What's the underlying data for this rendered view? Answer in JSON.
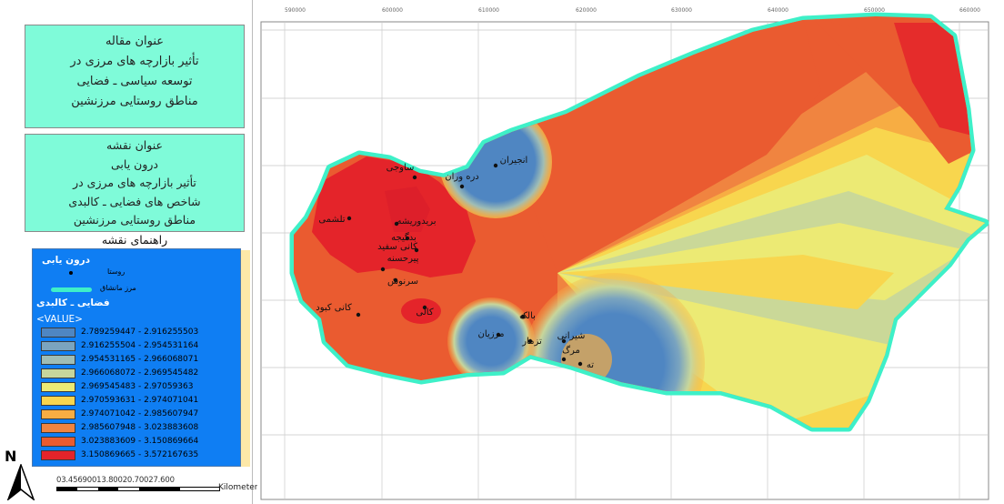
{
  "article_box": {
    "heading": "عنوان مقاله",
    "lines": [
      "تأثیر بازارچه های مرزی در",
      "توسعه سیاسی ـ فضایی",
      "مناطق روستایی مرزنشین"
    ]
  },
  "map_title_box": {
    "heading": "عنوان نقشه",
    "lines": [
      "درون یابی",
      "تأثیر بازارچه های مرزی در",
      "شاخص های فضایی ـ کالبدی",
      "مناطق روستایی مرزنشین"
    ]
  },
  "legend": {
    "caption": "راهنمای نقشه",
    "section_title": "درون یابی",
    "village_label": "روستا",
    "boundary_label": "مرز مانشاق",
    "layer_title": "فضایی ـ کالبدی",
    "value_label": "<VALUE>",
    "classes": [
      {
        "range": "2.789259447 - 2.916255503",
        "color": "#4f86c2"
      },
      {
        "range": "2.916255504 - 2.954531164",
        "color": "#7aa4bf"
      },
      {
        "range": "2.954531165 - 2.966068071",
        "color": "#a0bdb5"
      },
      {
        "range": "2.966068072 - 2.969545482",
        "color": "#c7d69c"
      },
      {
        "range": "2.969545483 - 2.97059363",
        "color": "#ecea74"
      },
      {
        "range": "2.970593631 - 2.974071041",
        "color": "#f8d64e"
      },
      {
        "range": "2.974071042 - 2.985607947",
        "color": "#f7ad43"
      },
      {
        "range": "2.985607948 - 3.023883608",
        "color": "#f08440"
      },
      {
        "range": "3.023883609 - 3.150869664",
        "color": "#ea5b30"
      },
      {
        "range": "3.150869665 - 3.572167635",
        "color": "#e4242a"
      }
    ]
  },
  "north_arrow": {
    "letter": "N"
  },
  "scale_bar": {
    "numbers": "03.45690013.80020.70027.600",
    "unit": "Kilometers"
  },
  "map": {
    "x_ticks": [
      "590000",
      "600000",
      "610000",
      "620000",
      "630000",
      "640000",
      "650000",
      "660000"
    ],
    "places": [
      {
        "name": "انجیران"
      },
      {
        "name": "دره وران"
      },
      {
        "name": "ساوجی"
      },
      {
        "name": "تلشمی"
      },
      {
        "name": "بریدوریشه"
      },
      {
        "name": "بدگیجه"
      },
      {
        "name": "کانی سفید"
      },
      {
        "name": "پیرحسنه"
      },
      {
        "name": "سرنوش"
      },
      {
        "name": "کانی کبود"
      },
      {
        "name": "کالی"
      },
      {
        "name": "بالک"
      },
      {
        "name": "مرزیان"
      },
      {
        "name": "تزمار"
      },
      {
        "name": "شیرانی"
      },
      {
        "name": "مرگ"
      },
      {
        "name": "ته"
      }
    ]
  }
}
